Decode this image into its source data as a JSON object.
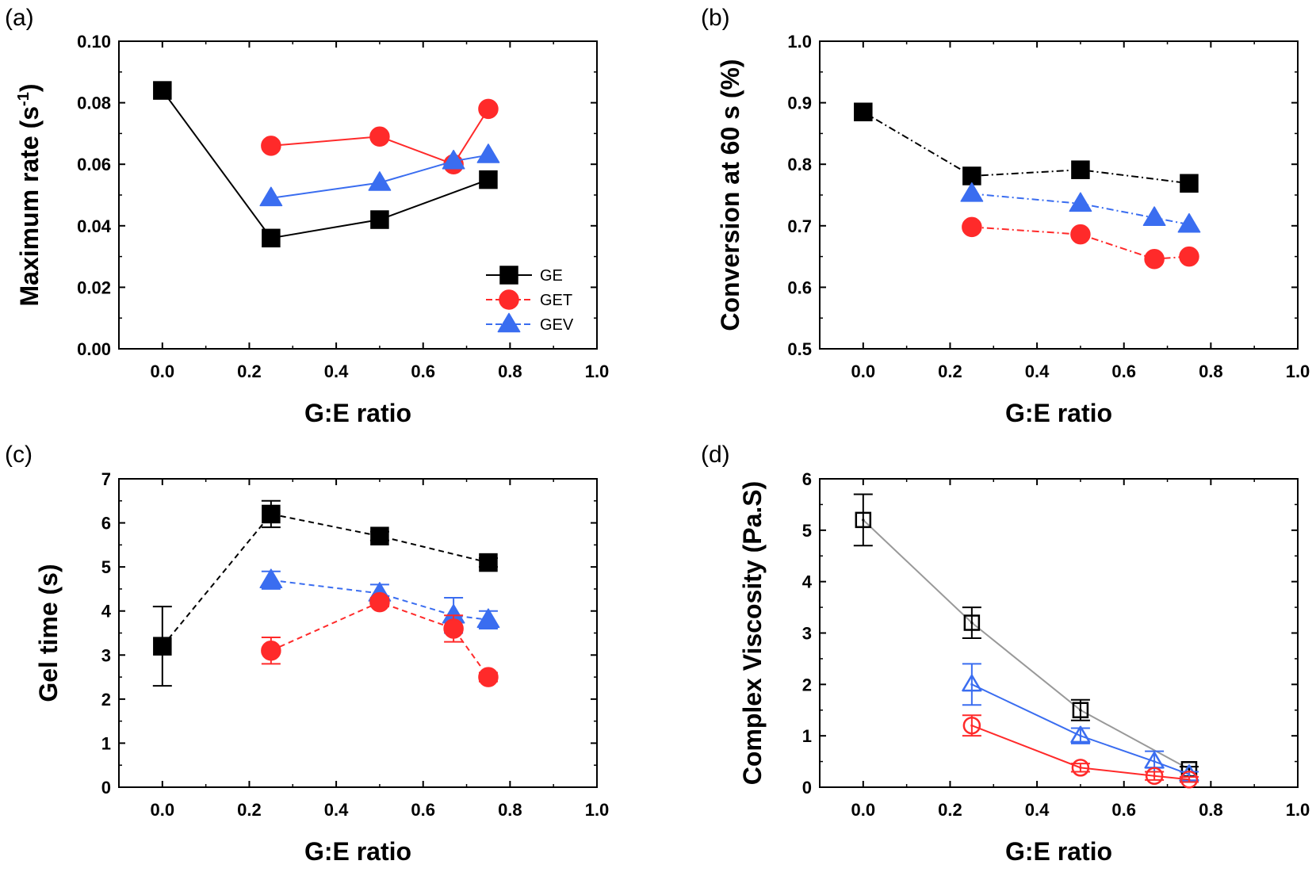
{
  "figure": {
    "panels": [
      {
        "letter": "(a)",
        "type": "line",
        "xlabel": "G:E ratio",
        "ylabel": "Maximum rate (s",
        "ylabel_sup": "-1",
        "ylabel_end": ")",
        "xlim": [
          -0.1,
          1.0
        ],
        "ylim": [
          0.0,
          0.1
        ],
        "xticks": [
          "0.0",
          "0.2",
          "0.4",
          "0.6",
          "0.8",
          "1.0"
        ],
        "yticks": [
          "0.00",
          "0.02",
          "0.04",
          "0.06",
          "0.08",
          "0.10"
        ],
        "legend": {
          "placement": "bottom-right",
          "entries": [
            "GE",
            "GET",
            "GEV"
          ]
        },
        "series": [
          {
            "name": "GE",
            "marker": "square",
            "filled": true,
            "color": "#000000",
            "line_color": "#000000",
            "dash": "solid",
            "x": [
              0.0,
              0.25,
              0.5,
              0.75
            ],
            "y": [
              0.084,
              0.036,
              0.042,
              0.055
            ]
          },
          {
            "name": "GET",
            "marker": "circle",
            "filled": true,
            "color": "#ff2a2a",
            "line_color": "#ff2a2a",
            "dash": "solid",
            "x": [
              0.25,
              0.5,
              0.67,
              0.75
            ],
            "y": [
              0.066,
              0.069,
              0.06,
              0.078
            ]
          },
          {
            "name": "GEV",
            "marker": "triangle",
            "filled": true,
            "color": "#3a6df0",
            "line_color": "#3a6df0",
            "dash": "solid",
            "x": [
              0.25,
              0.5,
              0.67,
              0.75
            ],
            "y": [
              0.049,
              0.054,
              0.061,
              0.063
            ]
          }
        ]
      },
      {
        "letter": "(b)",
        "type": "line",
        "xlabel": "G:E ratio",
        "ylabel": "Conversion at 60 s (%)",
        "xlim": [
          -0.1,
          1.0
        ],
        "ylim": [
          0.5,
          1.0
        ],
        "xticks": [
          "0.0",
          "0.2",
          "0.4",
          "0.6",
          "0.8",
          "1.0"
        ],
        "yticks": [
          "0.5",
          "0.6",
          "0.7",
          "0.8",
          "0.9",
          "1.0"
        ],
        "series": [
          {
            "marker": "square",
            "filled": true,
            "color": "#000000",
            "line_color": "#000000",
            "dash": "dashdot",
            "x": [
              0.0,
              0.25,
              0.5,
              0.75
            ],
            "y": [
              0.885,
              0.781,
              0.791,
              0.769
            ]
          },
          {
            "marker": "triangle",
            "filled": true,
            "color": "#3a6df0",
            "line_color": "#3a6df0",
            "dash": "dashdot",
            "x": [
              0.25,
              0.5,
              0.67,
              0.75
            ],
            "y": [
              0.752,
              0.736,
              0.713,
              0.702
            ]
          },
          {
            "marker": "circle",
            "filled": true,
            "color": "#ff2a2a",
            "line_color": "#ff2a2a",
            "dash": "dashdot",
            "x": [
              0.25,
              0.5,
              0.67,
              0.75
            ],
            "y": [
              0.698,
              0.686,
              0.646,
              0.65
            ]
          }
        ]
      },
      {
        "letter": "(c)",
        "type": "line",
        "xlabel": "G:E ratio",
        "ylabel": "Gel time (s)",
        "xlim": [
          -0.1,
          1.0
        ],
        "ylim": [
          0,
          7
        ],
        "xticks": [
          "0.0",
          "0.2",
          "0.4",
          "0.6",
          "0.8",
          "1.0"
        ],
        "yticks": [
          "0",
          "1",
          "2",
          "3",
          "4",
          "5",
          "6",
          "7"
        ],
        "series": [
          {
            "marker": "square",
            "filled": true,
            "color": "#000000",
            "line_color": "#000000",
            "dash": "dashed",
            "x": [
              0.0,
              0.25,
              0.5,
              0.75
            ],
            "y": [
              3.2,
              6.2,
              5.7,
              5.1
            ],
            "err": [
              0.9,
              0.3,
              0.1,
              0.1
            ]
          },
          {
            "marker": "triangle",
            "filled": true,
            "color": "#3a6df0",
            "line_color": "#3a6df0",
            "dash": "dashed",
            "x": [
              0.25,
              0.5,
              0.67,
              0.75
            ],
            "y": [
              4.7,
              4.4,
              3.9,
              3.8
            ],
            "err": [
              0.2,
              0.2,
              0.4,
              0.2
            ]
          },
          {
            "marker": "circle",
            "filled": true,
            "color": "#ff2a2a",
            "line_color": "#ff2a2a",
            "dash": "dashed",
            "x": [
              0.25,
              0.5,
              0.67,
              0.75
            ],
            "y": [
              3.1,
              4.2,
              3.6,
              2.5
            ],
            "err": [
              0.3,
              0.1,
              0.3,
              0.1
            ]
          }
        ]
      },
      {
        "letter": "(d)",
        "type": "line",
        "xlabel": "G:E ratio",
        "ylabel": "Complex Viscosity (Pa.S)",
        "xlim": [
          -0.1,
          1.0
        ],
        "ylim": [
          0,
          6
        ],
        "xticks": [
          "0.0",
          "0.2",
          "0.4",
          "0.6",
          "0.8",
          "1.0"
        ],
        "yticks": [
          "0",
          "1",
          "2",
          "3",
          "4",
          "5",
          "6"
        ],
        "series": [
          {
            "marker": "square",
            "filled": false,
            "color": "#000000",
            "line_color": "#999999",
            "dash": "solid",
            "x": [
              0.0,
              0.25,
              0.5,
              0.75
            ],
            "y": [
              5.2,
              3.2,
              1.5,
              0.35
            ],
            "err": [
              0.5,
              0.3,
              0.2,
              0.05
            ]
          },
          {
            "marker": "triangle",
            "filled": false,
            "color": "#3a6df0",
            "line_color": "#3a6df0",
            "dash": "solid",
            "x": [
              0.25,
              0.5,
              0.67,
              0.75
            ],
            "y": [
              2.0,
              1.0,
              0.5,
              0.25
            ],
            "err": [
              0.4,
              0.15,
              0.2,
              0.05
            ]
          },
          {
            "marker": "circle",
            "filled": false,
            "color": "#ff2a2a",
            "line_color": "#ff2a2a",
            "dash": "solid",
            "x": [
              0.25,
              0.5,
              0.67,
              0.75
            ],
            "y": [
              1.2,
              0.38,
              0.22,
              0.15
            ],
            "err": [
              0.2,
              0.08,
              0.08,
              0.05
            ]
          }
        ]
      }
    ]
  }
}
